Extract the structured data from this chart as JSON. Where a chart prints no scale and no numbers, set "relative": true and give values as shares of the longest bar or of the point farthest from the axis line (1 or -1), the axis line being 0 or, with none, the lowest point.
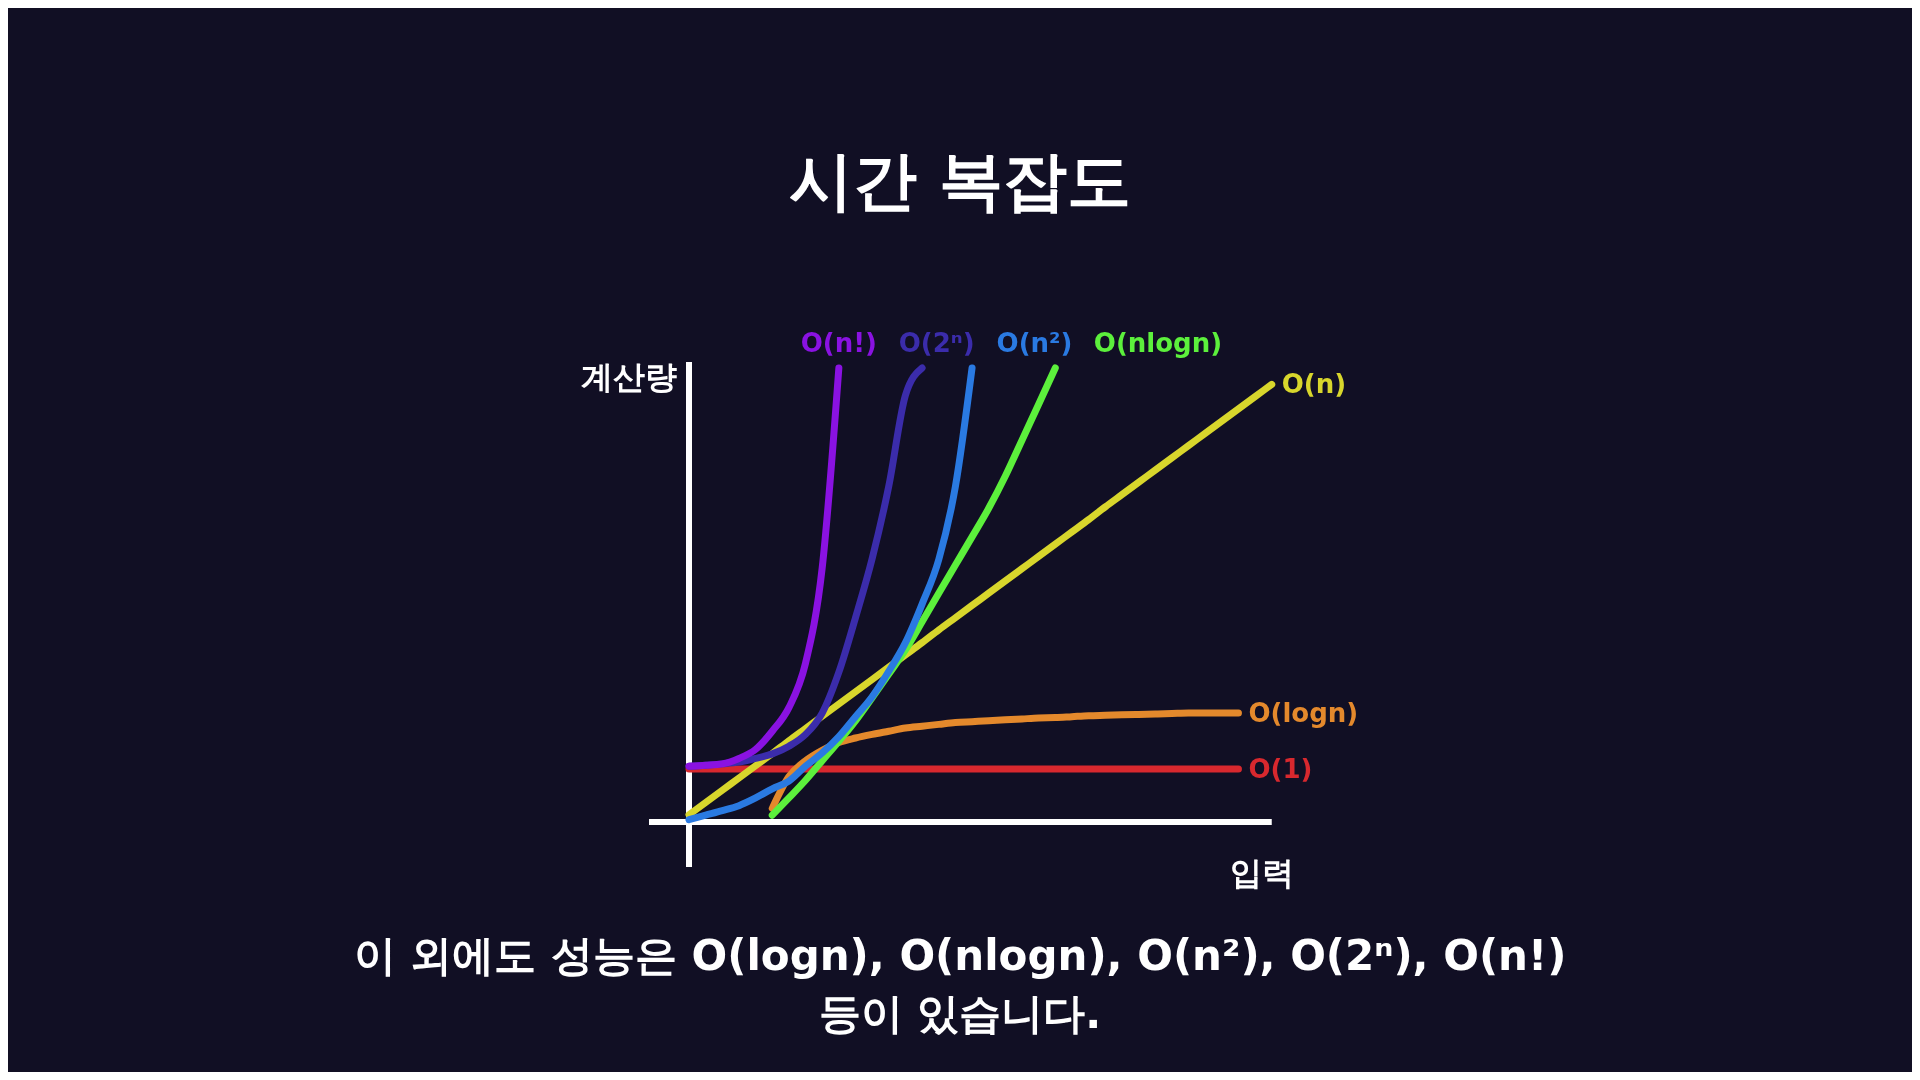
{
  "chart_data": {
    "type": "line",
    "title": "시간 복잡도",
    "xlabel": "입력",
    "ylabel": "계산량",
    "relative": true,
    "grid": false,
    "legend": false,
    "marker": "none",
    "line_style": "solid",
    "categories": [
      null,
      null,
      null,
      null,
      null,
      null,
      null,
      null,
      null,
      null,
      null,
      null,
      null,
      null,
      null,
      null,
      null,
      null,
      null,
      null,
      null,
      null,
      null,
      null,
      null,
      null,
      null,
      null,
      null,
      null,
      null,
      null,
      null,
      null,
      null,
      null
    ],
    "annotations": [
      "이 외에도 성능은 O(logn), O(nlogn), O(n²), O(2ⁿ), O(n!) 등이 있습니다."
    ],
    "series": [
      {
        "name": "O(1)",
        "color": "#d8282e",
        "values": [
          0.117,
          0.117,
          0.117,
          0.117,
          0.117,
          0.117,
          0.117,
          0.117,
          0.117,
          0.117,
          0.117,
          0.117,
          0.117,
          0.117,
          0.117,
          0.117,
          0.117,
          0.117,
          0.117,
          0.117,
          0.117,
          0.117,
          0.117,
          0.117,
          0.117,
          0.117,
          0.117,
          0.117,
          0.117,
          0.117,
          0.117,
          0.117,
          0.117,
          0.117,
          null,
          null
        ]
      },
      {
        "name": "O(logn)",
        "color": "#e4892c",
        "values": [
          null,
          null,
          null,
          null,
          null,
          0.03,
          0.1,
          0.135,
          0.158,
          0.175,
          0.185,
          0.193,
          0.2,
          0.207,
          0.211,
          0.215,
          0.219,
          0.221,
          0.223,
          0.225,
          0.227,
          0.229,
          0.23,
          0.232,
          0.234,
          0.235,
          0.236,
          0.237,
          0.238,
          0.239,
          0.24,
          0.24,
          0.24,
          0.24,
          null,
          null
        ]
      },
      {
        "name": "O(n)",
        "color": "#d8d62c",
        "values": [
          0.016,
          0.043,
          0.07,
          0.097,
          0.124,
          0.151,
          0.179,
          0.206,
          0.233,
          0.26,
          0.287,
          0.314,
          0.341,
          0.368,
          0.395,
          0.423,
          0.45,
          0.477,
          0.504,
          0.531,
          0.558,
          0.585,
          0.612,
          0.639,
          0.666,
          0.694,
          0.721,
          0.748,
          0.775,
          0.802,
          0.829,
          0.856,
          0.883,
          0.91,
          0.937,
          0.964
        ]
      },
      {
        "name": "O(nlogn)",
        "color": "#5cf03c",
        "values": [
          null,
          null,
          null,
          null,
          null,
          0.015,
          0.053,
          0.092,
          0.135,
          0.178,
          0.223,
          0.274,
          0.326,
          0.379,
          0.441,
          0.504,
          0.566,
          0.628,
          0.691,
          0.762,
          0.841,
          0.92,
          1,
          null,
          null,
          null,
          null,
          null,
          null,
          null,
          null,
          null,
          null,
          null,
          null,
          null
        ]
      },
      {
        "name": "O(n²)",
        "color": "#2a7ae2",
        "values": [
          0.005,
          0.015,
          0.025,
          0.036,
          0.053,
          0.073,
          0.09,
          0.123,
          0.152,
          0.188,
          0.232,
          0.276,
          0.332,
          0.395,
          0.48,
          0.578,
          0.739,
          1,
          null,
          null,
          null,
          null,
          null,
          null,
          null,
          null,
          null,
          null,
          null,
          null,
          null,
          null,
          null,
          null,
          null,
          null
        ]
      },
      {
        "name": "O(2ⁿ)",
        "color": "#3b2cab",
        "values": [
          0.123,
          0.125,
          0.128,
          0.132,
          0.14,
          0.15,
          0.167,
          0.193,
          0.24,
          0.33,
          0.45,
          0.58,
          0.74,
          0.94,
          1,
          null,
          null,
          null,
          null,
          null,
          null,
          null,
          null,
          null,
          null,
          null,
          null,
          null,
          null,
          null,
          null,
          null,
          null,
          null,
          null,
          null
        ]
      },
      {
        "name": "O(n!)",
        "color": "#8a12e2",
        "values": [
          0.123,
          0.125,
          0.128,
          0.14,
          0.16,
          0.2,
          0.252,
          0.35,
          0.56,
          1,
          null,
          null,
          null,
          null,
          null,
          null,
          null,
          null,
          null,
          null,
          null,
          null,
          null,
          null,
          null,
          null,
          null,
          null,
          null,
          null,
          null,
          null,
          null,
          null,
          null,
          null
        ]
      }
    ]
  }
}
